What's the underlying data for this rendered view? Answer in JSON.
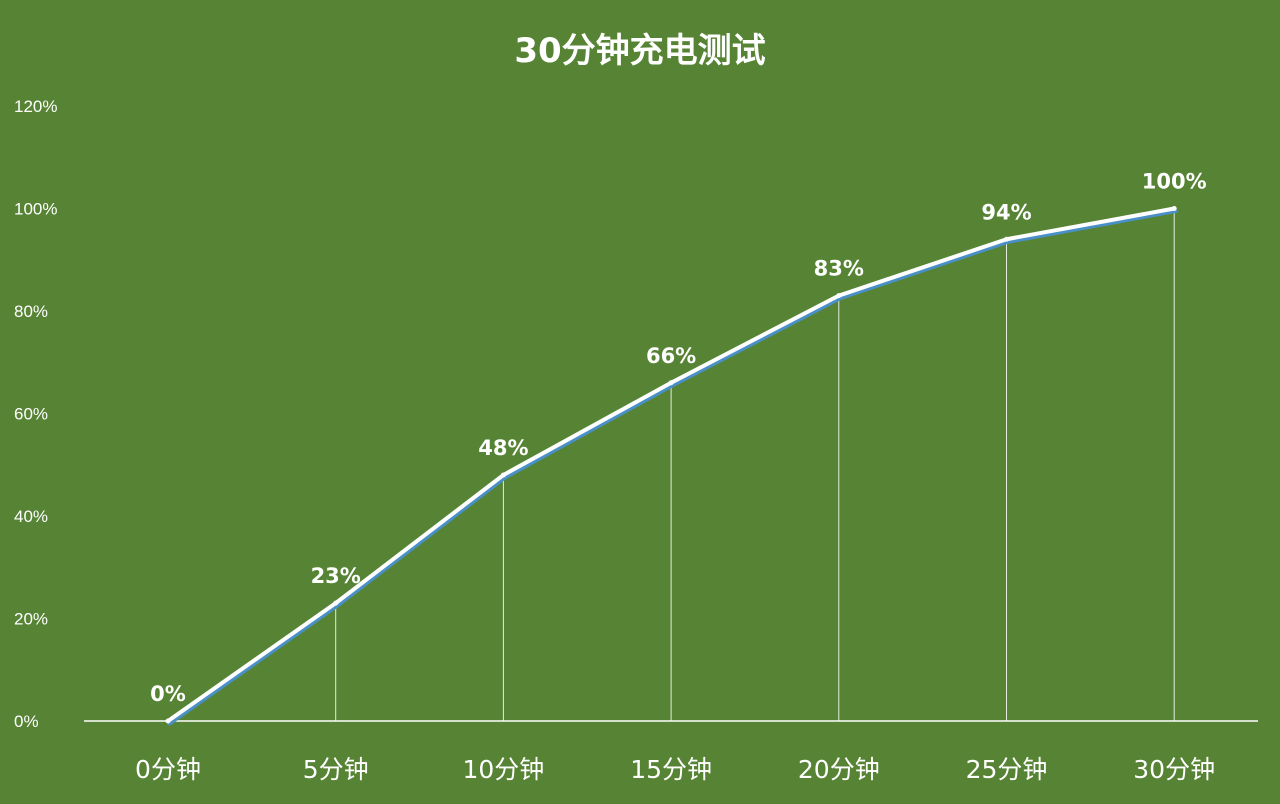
{
  "colors": {
    "background": "#568334",
    "line": "#ffffff",
    "line_shadow": "#4a90c8",
    "text": "#ffffff",
    "axis": "#ffffff"
  },
  "chart_data": {
    "type": "line",
    "title": "30分钟充电测试",
    "xlabel": "",
    "ylabel": "",
    "categories": [
      "0分钟",
      "5分钟",
      "10分钟",
      "15分钟",
      "20分钟",
      "25分钟",
      "30分钟"
    ],
    "values": [
      0,
      23,
      48,
      66,
      83,
      94,
      100
    ],
    "data_labels": [
      "0%",
      "23%",
      "48%",
      "66%",
      "83%",
      "94%",
      "100%"
    ],
    "y_ticks": [
      "0%",
      "20%",
      "40%",
      "60%",
      "80%",
      "100%",
      "120%"
    ],
    "y_tick_values": [
      0,
      20,
      40,
      60,
      80,
      100,
      120
    ],
    "ylim": [
      0,
      120
    ],
    "grid": false,
    "drop_lines": true,
    "legend": "none"
  }
}
